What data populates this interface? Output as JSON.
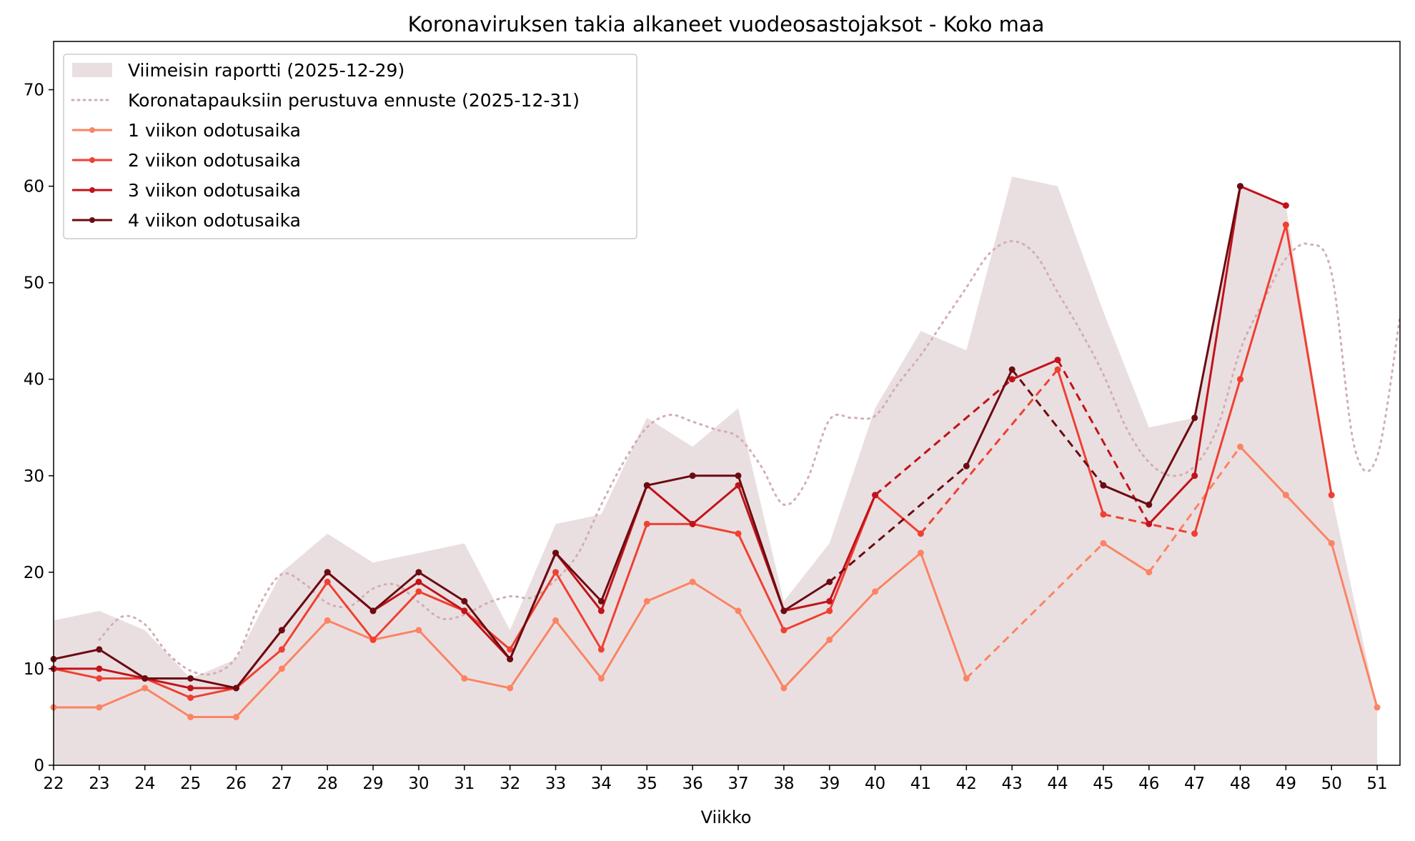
{
  "chart_data": {
    "type": "line",
    "title": "Koronaviruksen takia alkaneet vuodeosastojaksot - Koko maa",
    "xlabel": "Viikko",
    "ylabel": "",
    "xlim": [
      22,
      51.5
    ],
    "ylim": [
      0,
      75
    ],
    "x_ticks": [
      "22",
      "23",
      "24",
      "25",
      "26",
      "27",
      "28",
      "29",
      "30",
      "31",
      "32",
      "33",
      "34",
      "35",
      "36",
      "37",
      "38",
      "39",
      "40",
      "41",
      "42",
      "43",
      "44",
      "45",
      "46",
      "47",
      "48",
      "49",
      "50",
      "51"
    ],
    "y_ticks": [
      "0",
      "10",
      "20",
      "30",
      "40",
      "50",
      "60",
      "70"
    ],
    "grid": false,
    "legend_position": "top-left",
    "area": {
      "name": "Viimeisin raportti (2025-12-29)",
      "color": "#eadfe0",
      "x": [
        22,
        23,
        24,
        25,
        26,
        27,
        28,
        29,
        30,
        31,
        32,
        33,
        34,
        35,
        36,
        37,
        38,
        39,
        40,
        41,
        42,
        43,
        44,
        45,
        46,
        47,
        48,
        49,
        50,
        51
      ],
      "values": [
        15,
        16,
        14,
        9,
        11,
        20,
        24,
        21,
        22,
        23,
        14,
        25,
        26,
        36,
        33,
        37,
        17,
        23,
        37,
        45,
        43,
        61,
        60,
        47,
        35,
        36,
        60,
        58,
        28,
        6
      ]
    },
    "forecast": {
      "name": "Koronatapauksiin perustuva ennuste (2025-12-31)",
      "color": "#d2aeb3",
      "x": [
        23,
        23.5,
        24,
        24.5,
        25,
        25.5,
        26,
        26.5,
        27,
        27.5,
        28,
        28.5,
        29,
        29.5,
        30,
        30.5,
        31,
        31.5,
        32,
        32.5,
        33,
        33.5,
        34,
        34.5,
        35,
        35.5,
        36,
        36.5,
        37,
        37.5,
        38,
        38.5,
        39,
        39.5,
        40,
        40.5,
        41,
        41.5,
        42,
        42.5,
        43,
        43.5,
        44,
        44.5,
        45,
        45.5,
        46,
        46.5,
        47,
        47.5,
        48,
        48.5,
        49,
        49.5,
        50,
        50.5,
        51,
        51.5
      ],
      "values": [
        13,
        15.4,
        14.6,
        11.6,
        9.8,
        9.5,
        11.2,
        16.5,
        19.8,
        18.8,
        16.8,
        16.5,
        18.3,
        18.7,
        16.9,
        15.2,
        15.6,
        16.8,
        17.5,
        17.4,
        19.2,
        22,
        27,
        31.5,
        35,
        36.3,
        35.6,
        34.8,
        34,
        31,
        27,
        29.5,
        35.8,
        36,
        36.2,
        39.5,
        42.5,
        46,
        49.5,
        53,
        54.3,
        53,
        49,
        45,
        40.5,
        35,
        31.4,
        30,
        31,
        35,
        43,
        48,
        52.5,
        54,
        51,
        33,
        32,
        46.5
      ]
    },
    "series": [
      {
        "name": "1 viikon odotusaika",
        "color": "#fb8464",
        "x": [
          22,
          23,
          24,
          25,
          26,
          27,
          28,
          29,
          30,
          31,
          32,
          33,
          34,
          35,
          36,
          37,
          38,
          39,
          40,
          41,
          42,
          43,
          44,
          45,
          46,
          47,
          48,
          49,
          50,
          51
        ],
        "values": [
          6,
          6,
          8,
          5,
          5,
          10,
          15,
          13,
          14,
          9,
          8,
          15,
          9,
          17,
          19,
          16,
          8,
          13,
          18,
          22,
          9,
          null,
          null,
          23,
          20,
          null,
          33,
          28,
          23,
          6
        ]
      },
      {
        "name": "2 viikon odotusaika",
        "color": "#ef4033",
        "x": [
          22,
          23,
          24,
          25,
          26,
          27,
          28,
          29,
          30,
          31,
          32,
          33,
          34,
          35,
          36,
          37,
          38,
          39,
          40,
          41,
          42,
          43,
          44,
          45,
          46,
          47,
          48,
          49,
          50
        ],
        "values": [
          10,
          9,
          9,
          7,
          8,
          12,
          19,
          13,
          18,
          16,
          12,
          20,
          12,
          25,
          25,
          24,
          14,
          16,
          28,
          24,
          null,
          null,
          41,
          26,
          null,
          24,
          40,
          56,
          28
        ]
      },
      {
        "name": "3 viikon odotusaika",
        "color": "#c1131a",
        "x": [
          22,
          23,
          24,
          25,
          26,
          27,
          28,
          29,
          30,
          31,
          32,
          33,
          34,
          35,
          36,
          37,
          38,
          39,
          40,
          41,
          42,
          43,
          44,
          45,
          46,
          47,
          48,
          49
        ],
        "values": [
          10,
          10,
          9,
          8,
          8,
          14,
          20,
          16,
          19,
          16,
          11,
          22,
          16,
          29,
          25,
          29,
          16,
          17,
          28,
          null,
          null,
          40,
          42,
          null,
          25,
          30,
          60,
          58
        ]
      },
      {
        "name": "4 viikon odotusaika",
        "color": "#6b0b12",
        "x": [
          22,
          23,
          24,
          25,
          26,
          27,
          28,
          29,
          30,
          31,
          32,
          33,
          34,
          35,
          36,
          37,
          38,
          39,
          40,
          41,
          42,
          43,
          44,
          45,
          46,
          47,
          48
        ],
        "values": [
          11,
          12,
          9,
          9,
          8,
          14,
          20,
          16,
          20,
          17,
          11,
          22,
          17,
          29,
          30,
          30,
          16,
          19,
          null,
          null,
          31,
          41,
          null,
          29,
          27,
          36,
          60
        ]
      }
    ]
  }
}
